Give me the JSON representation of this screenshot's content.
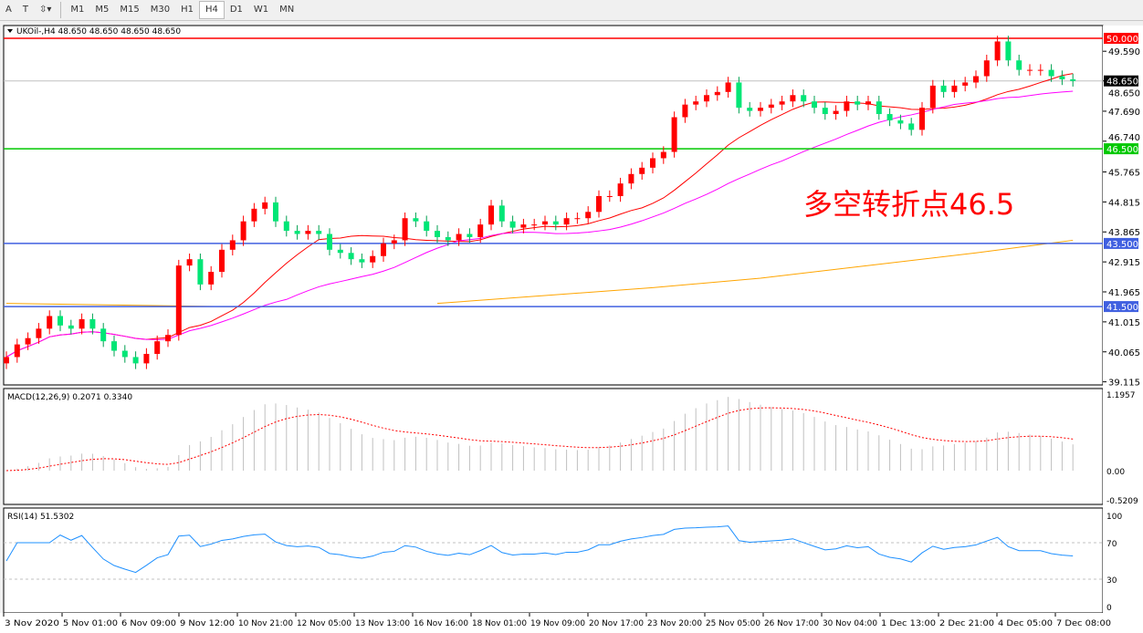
{
  "toolbar": {
    "tools": [
      {
        "label": "A",
        "icon": "text-tool-icon"
      },
      {
        "label": "T",
        "icon": "text-label-icon"
      },
      {
        "label": "⇳▾",
        "icon": "arrows-dropdown-icon"
      }
    ],
    "timeframes": [
      "M1",
      "M5",
      "M15",
      "M30",
      "H1",
      "H4",
      "D1",
      "W1",
      "MN"
    ],
    "active_timeframe": "H4"
  },
  "chart_data": {
    "type": "candlestick",
    "title": "UKOil-,H4  48.650 48.650 48.650 48.650",
    "ylim": [
      39.115,
      50.4
    ],
    "y_ticks": [
      "49.590",
      "48.650",
      "47.690",
      "46.740",
      "45.765",
      "44.815",
      "43.865",
      "42.915",
      "41.965",
      "41.015",
      "40.065",
      "39.115"
    ],
    "x_ticks": [
      "3 Nov 2020",
      "5 Nov 01:00",
      "6 Nov 09:00",
      "9 Nov 12:00",
      "10 Nov 21:00",
      "12 Nov 05:00",
      "13 Nov 13:00",
      "16 Nov 16:00",
      "18 Nov 01:00",
      "19 Nov 09:00",
      "20 Nov 17:00",
      "23 Nov 20:00",
      "25 Nov 05:00",
      "26 Nov 17:00",
      "30 Nov 04:00",
      "1 Dec 13:00",
      "2 Dec 21:00",
      "4 Dec 05:00",
      "7 Dec 08:00"
    ],
    "closes": [
      39.9,
      40.3,
      40.5,
      40.8,
      41.2,
      40.9,
      40.8,
      41.1,
      40.8,
      40.4,
      40.1,
      39.9,
      39.7,
      40.0,
      40.4,
      40.6,
      42.8,
      43.0,
      42.2,
      42.6,
      43.3,
      43.6,
      44.2,
      44.6,
      44.8,
      44.2,
      43.9,
      43.8,
      43.9,
      43.8,
      43.3,
      43.2,
      43.0,
      42.9,
      43.1,
      43.5,
      43.6,
      44.3,
      44.2,
      43.9,
      43.7,
      43.6,
      43.8,
      43.7,
      44.1,
      44.7,
      44.2,
      44.0,
      44.1,
      44.1,
      44.2,
      44.1,
      44.3,
      44.3,
      44.5,
      45.0,
      45.0,
      45.4,
      45.7,
      45.9,
      46.2,
      46.4,
      47.5,
      47.9,
      48.0,
      48.2,
      48.3,
      48.6,
      47.8,
      47.7,
      47.8,
      47.9,
      48.0,
      48.2,
      48.0,
      47.8,
      47.6,
      47.7,
      48.0,
      47.9,
      48.0,
      47.6,
      47.4,
      47.3,
      47.1,
      47.8,
      48.5,
      48.3,
      48.5,
      48.6,
      48.8,
      49.3,
      49.9,
      49.3,
      49.0,
      49.0,
      49.0,
      48.8,
      48.7,
      48.65
    ],
    "slow_ma": [
      41.6,
      41.55,
      41.5,
      41.5,
      41.6,
      41.85,
      42.1,
      42.4,
      42.8,
      43.2,
      43.6
    ],
    "current_price": "48.650",
    "levels": [
      {
        "value": 50.0,
        "label": "50.000",
        "color": "#ff0000"
      },
      {
        "value": 46.5,
        "label": "46.500",
        "color": "#00c800"
      },
      {
        "value": 43.5,
        "label": "43.500",
        "color": "#4060e0"
      },
      {
        "value": 41.5,
        "label": "41.500",
        "color": "#4060e0"
      }
    ],
    "annotation": "多空转折点46.5",
    "colors": {
      "up": "#ff0000",
      "down": "#00e676",
      "fast_ma": "#ff0000",
      "mid_ma": "#ff00ff",
      "slow_ma": "#ffa500",
      "rsi": "#1e90ff",
      "macd_hist": "#c0c0c0",
      "macd_signal": "#ff0000"
    },
    "macd": {
      "label": "MACD(12,26,9) 0.2071 0.3340",
      "ticks": [
        "1.1957",
        "0.00",
        "-0.5209"
      ],
      "ylim": [
        -0.5209,
        1.1957
      ]
    },
    "rsi": {
      "label": "RSI(14) 51.5302",
      "ticks": [
        "100",
        "70",
        "30",
        "0"
      ],
      "ylim": [
        0,
        100
      ],
      "levels": [
        70,
        30
      ]
    }
  }
}
